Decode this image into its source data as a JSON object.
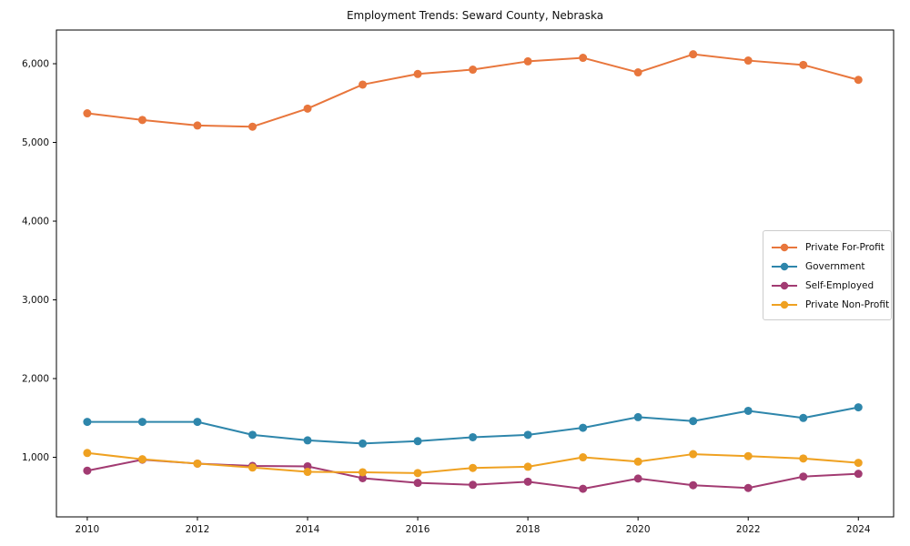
{
  "chart_data": {
    "type": "line",
    "title": "Employment Trends: Seward County, Nebraska",
    "xlabel": "",
    "ylabel": "",
    "x": [
      2010,
      2011,
      2012,
      2013,
      2014,
      2015,
      2016,
      2017,
      2018,
      2019,
      2020,
      2021,
      2022,
      2023,
      2024
    ],
    "series": [
      {
        "name": "Private For-Profit",
        "color": "#E8763C",
        "values": [
          5370,
          5285,
          5215,
          5200,
          5430,
          5735,
          5870,
          5925,
          6030,
          6075,
          5890,
          6120,
          6040,
          5985,
          5795
        ]
      },
      {
        "name": "Government",
        "color": "#2E86AB",
        "values": [
          1450,
          1450,
          1450,
          1285,
          1215,
          1175,
          1205,
          1255,
          1285,
          1375,
          1510,
          1460,
          1590,
          1500,
          1635
        ]
      },
      {
        "name": "Self-Employed",
        "color": "#A23B72",
        "values": [
          830,
          970,
          920,
          890,
          885,
          735,
          675,
          650,
          690,
          600,
          730,
          645,
          610,
          755,
          790
        ]
      },
      {
        "name": "Private Non-Profit",
        "color": "#EFA121",
        "values": [
          1055,
          975,
          920,
          870,
          815,
          810,
          800,
          865,
          880,
          1000,
          945,
          1040,
          1015,
          985,
          930
        ]
      }
    ],
    "xlim": [
      2009.44,
      2024.64
    ],
    "ylim": [
      243,
      6428
    ],
    "x_ticks": [
      2010,
      2012,
      2014,
      2016,
      2018,
      2020,
      2022,
      2024
    ],
    "x_tick_labels": [
      "2010",
      "2012",
      "2014",
      "2016",
      "2018",
      "2020",
      "2022",
      "2024"
    ],
    "y_ticks": [
      1000,
      2000,
      3000,
      4000,
      5000,
      6000
    ],
    "y_tick_labels": [
      "1,000",
      "2,000",
      "3,000",
      "4,000",
      "5,000",
      "6,000"
    ],
    "grid": false,
    "legend_position": "center-right",
    "frame_color": "#000000",
    "tick_label_color": "#0f0f0f",
    "line_width": 2,
    "marker_radius": 4.5
  }
}
